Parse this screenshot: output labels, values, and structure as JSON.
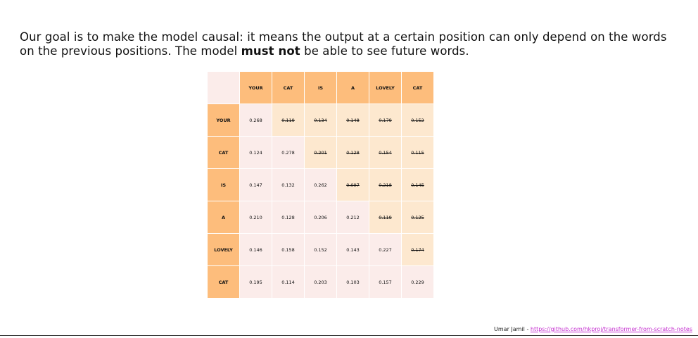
{
  "intro": {
    "part1": "Our goal is to make the model causal: it means the output at a certain position can only depend on the words on the previous positions. The model ",
    "bold": "must not",
    "part2": " be able to see future words."
  },
  "matrix": {
    "columns": [
      "YOUR",
      "CAT",
      "IS",
      "A",
      "LOVELY",
      "CAT"
    ],
    "rows": [
      {
        "label": "YOUR",
        "values": [
          "0.268",
          "0.119",
          "0.134",
          "0.148",
          "0.179",
          "0.152"
        ]
      },
      {
        "label": "CAT",
        "values": [
          "0.124",
          "0.278",
          "0.201",
          "0.128",
          "0.154",
          "0.115"
        ]
      },
      {
        "label": "IS",
        "values": [
          "0.147",
          "0.132",
          "0.262",
          "0.097",
          "0.218",
          "0.145"
        ]
      },
      {
        "label": "A",
        "values": [
          "0.210",
          "0.128",
          "0.206",
          "0.212",
          "0.119",
          "0.125"
        ]
      },
      {
        "label": "LOVELY",
        "values": [
          "0.146",
          "0.158",
          "0.152",
          "0.143",
          "0.227",
          "0.174"
        ]
      },
      {
        "label": "CAT",
        "values": [
          "0.195",
          "0.114",
          "0.203",
          "0.103",
          "0.157",
          "0.229"
        ]
      }
    ]
  },
  "credit": {
    "author": "Umar Jamil - ",
    "link": "https://github.com/hkproj/transformer-from-scratch-notes"
  }
}
